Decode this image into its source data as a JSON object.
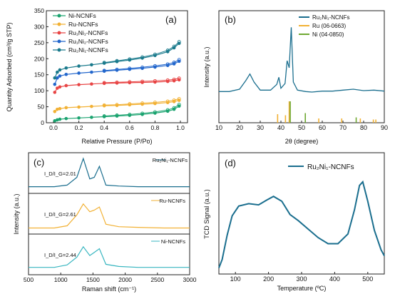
{
  "chart_data": [
    {
      "panel": "(a)",
      "type": "scatter",
      "xlabel": "Relative Pressure (P/Po)",
      "ylabel": "Quantity Adsorbed (cm³/g STP)",
      "xlim": [
        0.0,
        1.0
      ],
      "ylim": [
        0,
        350
      ],
      "xticks": [
        "0.0",
        "0.2",
        "0.4",
        "0.6",
        "0.8",
        "1.0"
      ],
      "yticks": [
        "0",
        "50",
        "100",
        "150",
        "200",
        "250",
        "300",
        "350"
      ],
      "legend_position": "top-left",
      "legend": [
        "Ni-NCNFs",
        "Ru-NCNFs",
        "Ru₁Ni₁-NCNFs",
        "Ru₁Ni₂-NCNFs",
        "Ru₂Ni₁-NCNFs"
      ],
      "series": [
        {
          "name": "Ni-NCNFs",
          "color": "#1aa36f",
          "x": [
            0.01,
            0.03,
            0.05,
            0.1,
            0.2,
            0.3,
            0.4,
            0.5,
            0.6,
            0.7,
            0.8,
            0.9,
            0.95,
            0.99
          ],
          "y": [
            6,
            9,
            11,
            13,
            15,
            17,
            19,
            21,
            23,
            26,
            30,
            36,
            42,
            52
          ]
        },
        {
          "name": "Ru-NCNFs",
          "color": "#f2b134",
          "x": [
            0.01,
            0.03,
            0.05,
            0.1,
            0.2,
            0.3,
            0.4,
            0.5,
            0.6,
            0.7,
            0.8,
            0.9,
            0.95,
            0.99
          ],
          "y": [
            35,
            42,
            44,
            47,
            49,
            51,
            53,
            54,
            56,
            58,
            60,
            63,
            66,
            70
          ]
        },
        {
          "name": "Ru₁Ni₁-NCNFs",
          "color": "#e84545",
          "x": [
            0.01,
            0.03,
            0.05,
            0.1,
            0.2,
            0.3,
            0.4,
            0.5,
            0.6,
            0.7,
            0.8,
            0.9,
            0.95,
            0.99
          ],
          "y": [
            95,
            108,
            112,
            116,
            119,
            121,
            123,
            124,
            125,
            126,
            127,
            129,
            131,
            134
          ]
        },
        {
          "name": "Ru₁Ni₂-NCNFs",
          "color": "#2266cc",
          "x": [
            0.01,
            0.03,
            0.05,
            0.1,
            0.2,
            0.3,
            0.4,
            0.5,
            0.6,
            0.7,
            0.8,
            0.9,
            0.95,
            0.99
          ],
          "y": [
            120,
            140,
            146,
            151,
            155,
            158,
            161,
            164,
            167,
            170,
            174,
            179,
            184,
            192
          ]
        },
        {
          "name": "Ru₂Ni₁-NCNFs",
          "color": "#1a7a8c",
          "x": [
            0.01,
            0.03,
            0.05,
            0.1,
            0.2,
            0.3,
            0.4,
            0.5,
            0.6,
            0.7,
            0.8,
            0.9,
            0.95,
            0.99
          ],
          "y": [
            140,
            158,
            165,
            171,
            177,
            181,
            186,
            191,
            196,
            202,
            210,
            222,
            234,
            248
          ]
        }
      ]
    },
    {
      "panel": "(b)",
      "type": "line",
      "xlabel": "2θ (degree)",
      "ylabel": "Intensity (a.u.)",
      "xlim": [
        10,
        90
      ],
      "xticks": [
        "10",
        "20",
        "30",
        "40",
        "50",
        "60",
        "70",
        "80",
        "90"
      ],
      "legend_position": "top-right",
      "series": [
        {
          "name": "Ru₂Ni₁-NCNFs",
          "color": "#1a6e8e",
          "x": [
            10,
            15,
            20,
            23,
            25,
            27,
            30,
            35,
            38,
            39,
            40,
            42,
            43,
            44,
            45,
            46,
            48,
            52,
            55,
            60,
            65,
            70,
            75,
            80,
            85,
            90
          ],
          "y": [
            0.55,
            0.55,
            0.6,
            0.78,
            0.92,
            0.75,
            0.58,
            0.58,
            0.7,
            0.85,
            0.62,
            0.72,
            1.2,
            1.05,
            1.9,
            0.75,
            0.58,
            0.55,
            0.54,
            0.56,
            0.56,
            0.58,
            0.6,
            0.57,
            0.58,
            0.56
          ]
        },
        {
          "name": "Ru (06-0663)",
          "color": "#f2b134",
          "x": [
            38.4,
            42.2,
            44.0,
            58.3,
            69.4,
            78.4,
            84.7,
            85.9
          ],
          "y": [
            0.4,
            0.35,
            1.0,
            0.2,
            0.2,
            0.2,
            0.15,
            0.15
          ]
        },
        {
          "name": "Ni (04-0850)",
          "color": "#6ea832",
          "x": [
            44.5,
            51.8,
            76.4
          ],
          "y": [
            1.0,
            0.45,
            0.25
          ]
        }
      ]
    },
    {
      "panel": "(c)",
      "type": "line",
      "xlabel": "Raman shift (cm⁻¹)",
      "ylabel": "Intensity (a.u.)",
      "xlim": [
        500,
        3000
      ],
      "xticks": [
        "500",
        "1000",
        "1500",
        "2000",
        "2500",
        "3000"
      ],
      "series": [
        {
          "name": "Ru₂Ni₁-NCNFs",
          "color": "#1a6e8e",
          "ratio": "I_D/I_G=2.01",
          "x": [
            500,
            900,
            1100,
            1250,
            1350,
            1450,
            1520,
            1600,
            1700,
            1900,
            2200,
            2600,
            3000
          ],
          "y": [
            0.1,
            0.1,
            0.15,
            0.4,
            1.0,
            0.35,
            0.4,
            0.75,
            0.15,
            0.12,
            0.1,
            0.1,
            0.1
          ]
        },
        {
          "name": "Ru-NCNFs",
          "color": "#f2b134",
          "ratio": "I_D/I_G=2.61",
          "x": [
            500,
            900,
            1100,
            1250,
            1350,
            1450,
            1520,
            1600,
            1700,
            1900,
            2200,
            2600,
            3000
          ],
          "y": [
            0.08,
            0.08,
            0.15,
            0.5,
            0.85,
            0.6,
            0.65,
            0.75,
            0.2,
            0.12,
            0.1,
            0.08,
            0.08
          ]
        },
        {
          "name": "Ni-NCNFs",
          "color": "#38b6c0",
          "ratio": "I_D/I_G=2.44",
          "x": [
            500,
            900,
            1100,
            1250,
            1350,
            1450,
            1520,
            1600,
            1700,
            1900,
            2200,
            2600,
            3000
          ],
          "y": [
            0.12,
            0.12,
            0.2,
            0.45,
            0.78,
            0.5,
            0.6,
            0.72,
            0.22,
            0.15,
            0.12,
            0.12,
            0.12
          ]
        }
      ]
    },
    {
      "panel": "(d)",
      "type": "line",
      "xlabel": "Temperature (ºC)",
      "ylabel": "TCD Signal (a.u.)",
      "xlim": [
        50,
        550
      ],
      "xticks": [
        "100",
        "200",
        "300",
        "400",
        "500"
      ],
      "legend_position": "top-left",
      "series": [
        {
          "name": "Ru₂Ni₁-NCNFs",
          "color": "#1a6e8e",
          "x": [
            50,
            60,
            75,
            90,
            110,
            140,
            170,
            195,
            215,
            240,
            265,
            290,
            320,
            350,
            380,
            410,
            440,
            460,
            475,
            485,
            500,
            520,
            540,
            550
          ],
          "y": [
            0.05,
            0.12,
            0.32,
            0.48,
            0.56,
            0.58,
            0.57,
            0.61,
            0.64,
            0.6,
            0.49,
            0.44,
            0.37,
            0.3,
            0.25,
            0.25,
            0.33,
            0.53,
            0.73,
            0.76,
            0.6,
            0.36,
            0.2,
            0.15
          ]
        }
      ]
    }
  ],
  "legend_a": {
    "s1": "Ni-NCNFs",
    "s2": "Ru-NCNFs",
    "s3": "Ru₁Ni₁-NCNFs",
    "s4": "Ru₁Ni₂-NCNFs",
    "s5": "Ru₂Ni₁-NCNFs"
  },
  "legend_b": {
    "s1": "Ru₂Ni₁-NCNFs",
    "s2": "Ru (06-0663)",
    "s3": "Ni (04-0850)"
  },
  "legend_c": {
    "s1": "Ru₂Ni₁-NCNFs",
    "s2": "Ru-NCNFs",
    "s3": "Ni-NCNFs"
  },
  "legend_d": {
    "s1": "Ru₂Ni₁-NCNFs"
  },
  "labels": {
    "a": "(a)",
    "b": "(b)",
    "c": "(c)",
    "d": "(d)"
  },
  "ratios": {
    "top": "I_D/I_G=2.01",
    "mid": "I_D/I_G=2.61",
    "bot": "I_D/I_G=2.44"
  }
}
